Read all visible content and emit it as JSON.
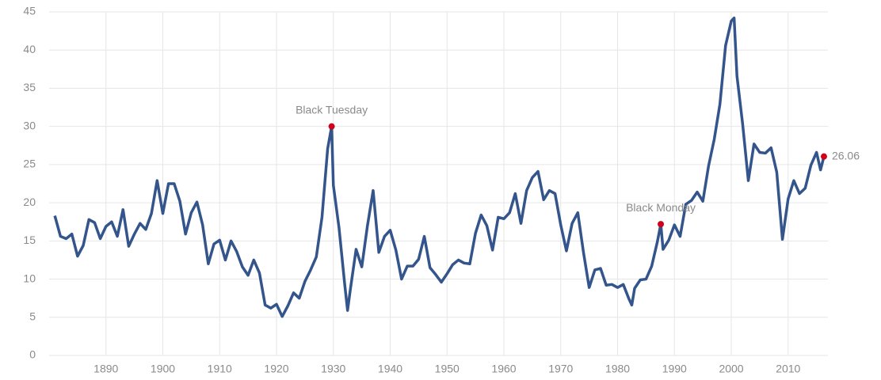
{
  "chart_data": {
    "type": "line",
    "x": [
      1881,
      1882,
      1883,
      1884,
      1885,
      1886,
      1887,
      1888,
      1889,
      1890,
      1891,
      1892,
      1893,
      1894,
      1895,
      1896,
      1897,
      1898,
      1899,
      1900,
      1901,
      1902,
      1903,
      1904,
      1905,
      1906,
      1907,
      1908,
      1909,
      1910,
      1911,
      1912,
      1913,
      1914,
      1915,
      1916,
      1917,
      1918,
      1919,
      1920,
      1921,
      1922,
      1923,
      1924,
      1925,
      1926,
      1927,
      1928,
      1929,
      1929.7,
      1930,
      1931,
      1932,
      1932.5,
      1933,
      1934,
      1935,
      1936,
      1937,
      1938,
      1939,
      1940,
      1941,
      1942,
      1943,
      1944,
      1945,
      1946,
      1947,
      1948,
      1949,
      1950,
      1951,
      1952,
      1953,
      1954,
      1955,
      1956,
      1957,
      1958,
      1959,
      1960,
      1961,
      1962,
      1963,
      1964,
      1965,
      1966,
      1967,
      1968,
      1969,
      1970,
      1971,
      1972,
      1973,
      1974,
      1975,
      1976,
      1977,
      1978,
      1979,
      1980,
      1981,
      1982,
      1982.5,
      1983,
      1984,
      1985,
      1986,
      1987,
      1987.6,
      1988,
      1989,
      1990,
      1991,
      1992,
      1993,
      1994,
      1995,
      1996,
      1997,
      1998,
      1999,
      2000,
      2000.5,
      2001,
      2002,
      2003,
      2004,
      2005,
      2006,
      2007,
      2008,
      2009,
      2010,
      2011,
      2012,
      2013,
      2014,
      2015,
      2015.7,
      2016.3
    ],
    "series": [
      {
        "color": "#34558b",
        "values": [
          18.3,
          15.6,
          15.3,
          15.9,
          13.0,
          14.4,
          17.8,
          17.4,
          15.3,
          16.9,
          17.5,
          15.6,
          19.1,
          14.3,
          15.9,
          17.3,
          16.5,
          18.6,
          22.9,
          18.6,
          22.5,
          22.5,
          20.2,
          15.9,
          18.7,
          20.1,
          17.1,
          12.0,
          14.6,
          15.1,
          12.5,
          15.0,
          13.6,
          11.6,
          10.5,
          12.5,
          10.8,
          6.6,
          6.2,
          6.7,
          5.1,
          6.5,
          8.2,
          7.5,
          9.7,
          11.2,
          12.9,
          18.1,
          27.1,
          30.0,
          22.3,
          16.7,
          9.3,
          5.9,
          8.7,
          13.9,
          11.6,
          17.0,
          21.6,
          13.5,
          15.6,
          16.4,
          13.8,
          10.0,
          11.7,
          11.7,
          12.6,
          15.6,
          11.5,
          10.6,
          9.6,
          10.7,
          11.9,
          12.5,
          12.1,
          12.0,
          16.0,
          18.4,
          17.0,
          13.8,
          18.1,
          17.9,
          18.7,
          21.2,
          17.3,
          21.6,
          23.3,
          24.1,
          20.4,
          21.6,
          21.2,
          17.1,
          13.7,
          17.3,
          18.7,
          13.5,
          8.9,
          11.2,
          11.4,
          9.2,
          9.3,
          8.9,
          9.3,
          7.4,
          6.6,
          8.8,
          9.9,
          10.0,
          11.7,
          14.9,
          17.2,
          13.9,
          15.1,
          17.1,
          15.6,
          19.8,
          20.3,
          21.4,
          20.2,
          24.8,
          28.3,
          32.9,
          40.6,
          43.8,
          44.2,
          36.6,
          30.3,
          22.9,
          27.7,
          26.6,
          26.5,
          27.2,
          24.0,
          15.2,
          20.5,
          22.9,
          21.2,
          21.9,
          24.9,
          26.6,
          24.3,
          26.06
        ]
      }
    ],
    "annotations": [
      {
        "text": "Black Tuesday",
        "x": 1929.7
      },
      {
        "text": "Black Monday",
        "x": 1987.6
      }
    ],
    "marker_color": "#d0021b",
    "xlim": [
      1880,
      2017
    ],
    "xticks": [
      1890,
      1900,
      1910,
      1920,
      1930,
      1940,
      1950,
      1960,
      1970,
      1980,
      1990,
      2000,
      2010
    ],
    "ylim": [
      0,
      45
    ],
    "yticks": [
      0,
      5,
      10,
      15,
      20,
      25,
      30,
      35,
      40,
      45
    ],
    "grid": true
  }
}
